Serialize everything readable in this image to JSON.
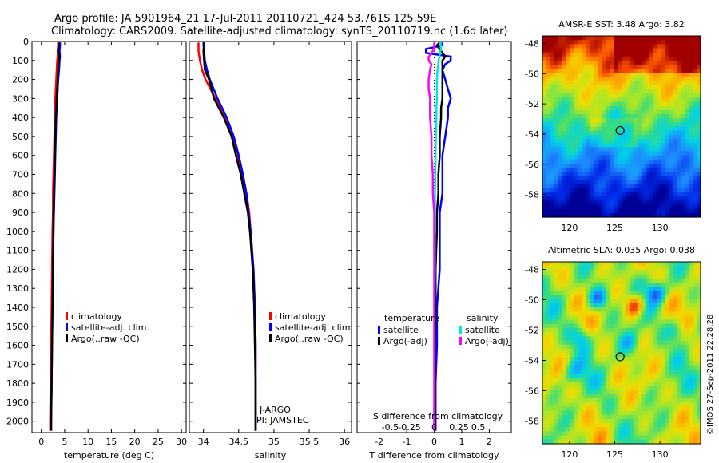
{
  "title_line1": "Argo profile: JA 5901964_21 17-Jul-2011 20110721_424 53.761S 125.59E",
  "title_line2": "Climatology: CARS2009. Satellite-adjusted climatology: synTS_20110719.nc (1.6d later)",
  "stamp": "©IMOS 27-Sep-2011 22:28:28",
  "colors": {
    "climatology": "#ff0000",
    "satellite": "#0000ff",
    "argo": "#000000",
    "sat_s": "#00e5e5",
    "argo_s": "#ff00ff"
  },
  "chart_data": [
    {
      "type": "line",
      "id": "temperature",
      "xlabel": "temperature (deg C)",
      "xlim": [
        -2,
        31
      ],
      "ylim": [
        2060,
        0
      ],
      "xticks": [
        0,
        5,
        10,
        15,
        20,
        25,
        30
      ],
      "yticks": [
        0,
        100,
        200,
        300,
        400,
        500,
        600,
        700,
        800,
        900,
        1000,
        1100,
        1200,
        1300,
        1400,
        1500,
        1600,
        1700,
        1800,
        1900,
        2000
      ],
      "depths": [
        5,
        20,
        50,
        80,
        100,
        150,
        200,
        300,
        400,
        500,
        600,
        700,
        800,
        900,
        1000,
        1200,
        1400,
        1600,
        1800,
        2000,
        2050
      ],
      "series": [
        {
          "name": "climatology",
          "color": "#ff0000",
          "values": [
            3.6,
            3.6,
            3.5,
            3.5,
            3.4,
            3.3,
            3.2,
            3.0,
            2.9,
            2.8,
            2.7,
            2.6,
            2.5,
            2.5,
            2.4,
            2.3,
            2.2,
            2.1,
            2.0,
            1.9,
            1.9
          ]
        },
        {
          "name": "satellite-adj. clim.",
          "color": "#0000ff",
          "values": [
            4.0,
            4.0,
            3.9,
            4.0,
            3.9,
            3.8,
            3.6,
            3.4,
            3.2,
            3.1,
            3.0,
            2.9,
            2.8,
            2.7,
            2.6,
            2.5,
            2.4,
            2.3,
            2.2,
            2.1,
            2.1
          ]
        },
        {
          "name": "Argo(..raw -QC)",
          "color": "#000000",
          "values": [
            3.8,
            3.7,
            3.6,
            3.9,
            3.7,
            3.6,
            3.5,
            3.3,
            3.1,
            3.0,
            2.9,
            2.8,
            2.7,
            2.6,
            2.6,
            2.5,
            2.4,
            2.3,
            2.2,
            2.1,
            2.1
          ]
        }
      ],
      "legend": [
        "climatology",
        "satellite-adj. clim.",
        "Argo(..raw -QC)"
      ]
    },
    {
      "type": "line",
      "id": "salinity",
      "xlabel": "salinity",
      "xlim": [
        33.8,
        36.1
      ],
      "ylim": [
        2060,
        0
      ],
      "xticks": [
        34,
        34.5,
        35,
        35.5,
        36
      ],
      "depths": [
        5,
        20,
        50,
        100,
        150,
        200,
        300,
        400,
        500,
        600,
        700,
        800,
        900,
        1000,
        1200,
        1400,
        1600,
        1800,
        2000,
        2050
      ],
      "series": [
        {
          "name": "climatology",
          "color": "#ff0000",
          "values": [
            33.93,
            33.93,
            33.93,
            33.95,
            33.98,
            34.03,
            34.17,
            34.3,
            34.4,
            34.48,
            34.55,
            34.61,
            34.65,
            34.67,
            34.71,
            34.73,
            34.74,
            34.74,
            34.74,
            34.74
          ]
        },
        {
          "name": "satellite-adj. clim.",
          "color": "#0000ff",
          "values": [
            34.0,
            34.0,
            34.01,
            34.02,
            34.05,
            34.09,
            34.2,
            34.33,
            34.43,
            34.5,
            34.56,
            34.61,
            34.64,
            34.67,
            34.71,
            34.73,
            34.74,
            34.74,
            34.74,
            34.74
          ]
        },
        {
          "name": "Argo(..raw -QC)",
          "color": "#000000",
          "values": [
            34.01,
            34.01,
            34.0,
            34.01,
            34.02,
            34.08,
            34.15,
            34.29,
            34.4,
            34.46,
            34.53,
            34.58,
            34.63,
            34.66,
            34.7,
            34.72,
            34.73,
            34.74,
            34.74,
            34.74
          ]
        }
      ],
      "legend": [
        "climatology",
        "satellite-adj. clim.",
        "Argo(..raw -QC)"
      ],
      "annotation_line1": "J-ARGO",
      "annotation_line2": "PI: JAMSTEC"
    },
    {
      "type": "line",
      "id": "difference",
      "xlabel": "T difference from climatology",
      "top_label": "S difference from climatology",
      "xlim": [
        -2.8,
        2.8
      ],
      "ylim": [
        2060,
        0
      ],
      "xticks": [
        -2,
        -1,
        0,
        1,
        2
      ],
      "top_ticks_labels": [
        "-0.5",
        "-0.25",
        "0",
        "0.25",
        "0.5"
      ],
      "top_ticks_values": [
        -1.6,
        -0.9,
        0,
        0.9,
        1.6
      ],
      "depths": [
        5,
        20,
        40,
        60,
        80,
        100,
        120,
        150,
        200,
        250,
        300,
        350,
        400,
        500,
        600,
        700,
        800,
        900,
        1000,
        1200,
        1400,
        1600,
        1800,
        2000,
        2050
      ],
      "series": [
        {
          "name": "temperature satellite",
          "color": "#0000ff",
          "values": [
            0.3,
            0.3,
            -0.3,
            -0.3,
            0.6,
            0.6,
            0.4,
            0.3,
            0.4,
            0.5,
            0.6,
            0.5,
            0.5,
            0.4,
            0.3,
            0.3,
            0.3,
            0.2,
            0.2,
            0.2,
            0.1,
            0.1,
            0.05,
            0.05,
            0.05
          ]
        },
        {
          "name": "temperature Argo(-adj)",
          "color": "#000000",
          "values": [
            0.2,
            0.1,
            0.2,
            0.3,
            0.4,
            0.3,
            0.3,
            0.3,
            0.3,
            0.3,
            0.3,
            0.25,
            0.25,
            0.2,
            0.2,
            0.15,
            0.15,
            0.1,
            0.1,
            0.05,
            0.05,
            0.03,
            0.03,
            0.02,
            0.02
          ]
        },
        {
          "name": "salinity satellite",
          "color": "#00e5e5",
          "values": [
            0.2,
            0.25,
            0.25,
            0.2,
            0.2,
            0.15,
            0.15,
            0.12,
            0.1,
            0.1,
            0.1,
            0.08,
            0.08,
            0.06,
            0.05,
            0.04,
            0.03,
            0.03,
            0.02,
            0.02,
            0.01,
            0.01,
            0.01,
            0.0,
            0.0
          ]
        },
        {
          "name": "salinity Argo(-adj)",
          "color": "#ff00ff",
          "values": [
            0.0,
            0.0,
            0.0,
            -0.1,
            -0.2,
            -0.2,
            -0.1,
            -0.15,
            -0.2,
            -0.2,
            -0.15,
            -0.15,
            -0.15,
            -0.1,
            -0.1,
            -0.05,
            -0.05,
            0.0,
            0.0,
            0.0,
            0.0,
            0.0,
            0.0,
            0.0,
            0.0
          ]
        }
      ],
      "legend_temperature_title": "temperature",
      "legend_salinity_title": "salinity",
      "legend_temperature": [
        "satellite",
        "Argo(-adj)"
      ],
      "legend_salinity": [
        "satellite",
        "Argo(-adj)"
      ]
    },
    {
      "type": "heatmap",
      "id": "sst-map",
      "title": "AMSR-E SST: 3.48 Argo: 3.82",
      "xticks": [
        120,
        125,
        130
      ],
      "yticks": [
        -48,
        -50,
        -52,
        -54,
        -56,
        -58
      ],
      "xlim": [
        117,
        134.5
      ],
      "ylim": [
        -59.5,
        -47.5
      ],
      "marker": [
        125.59,
        -53.761
      ]
    },
    {
      "type": "heatmap",
      "id": "sla-map",
      "title": "Altimetric SLA: 0.035 Argo: 0.038",
      "xticks": [
        120,
        125,
        130
      ],
      "yticks": [
        -48,
        -50,
        -52,
        -54,
        -56,
        -58
      ],
      "xlim": [
        117,
        134.5
      ],
      "ylim": [
        -59.5,
        -47.5
      ],
      "marker": [
        125.59,
        -53.761
      ]
    }
  ]
}
